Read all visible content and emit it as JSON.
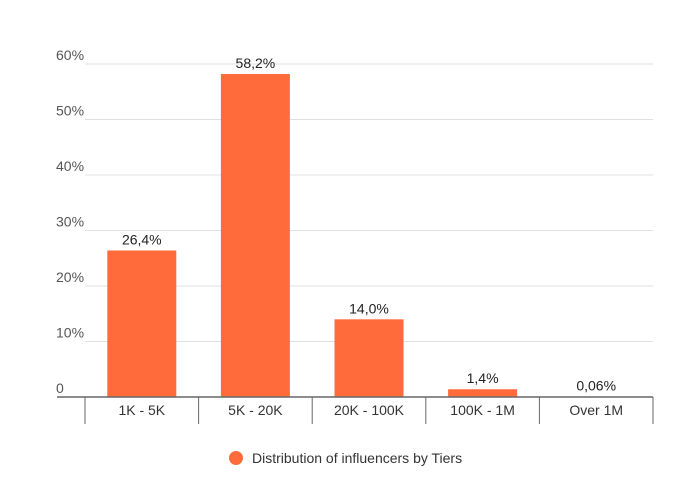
{
  "chart_data": {
    "type": "bar",
    "categories": [
      "1K - 5K",
      "5K - 20K",
      "20K - 100K",
      "100K - 1M",
      "Over 1M"
    ],
    "series": [
      {
        "name": "Distribution of influencers by Tiers",
        "values": [
          26.4,
          58.2,
          14.0,
          1.4,
          0.06
        ],
        "data_labels": [
          "26,4%",
          "58,2%",
          "14,0%",
          "1,4%",
          "0,06%"
        ],
        "color": "#ff6b3b"
      }
    ],
    "ylim": [
      0,
      60
    ],
    "yticks": [
      0,
      10,
      20,
      30,
      40,
      50,
      60
    ],
    "ytick_labels": [
      "0",
      "10%",
      "20%",
      "30%",
      "40%",
      "50%",
      "60%"
    ],
    "grid": true,
    "legend_position": "bottom"
  },
  "colors": {
    "bar": "#ff6b3b",
    "grid": "#e0e0e0",
    "axis": "#666666"
  }
}
